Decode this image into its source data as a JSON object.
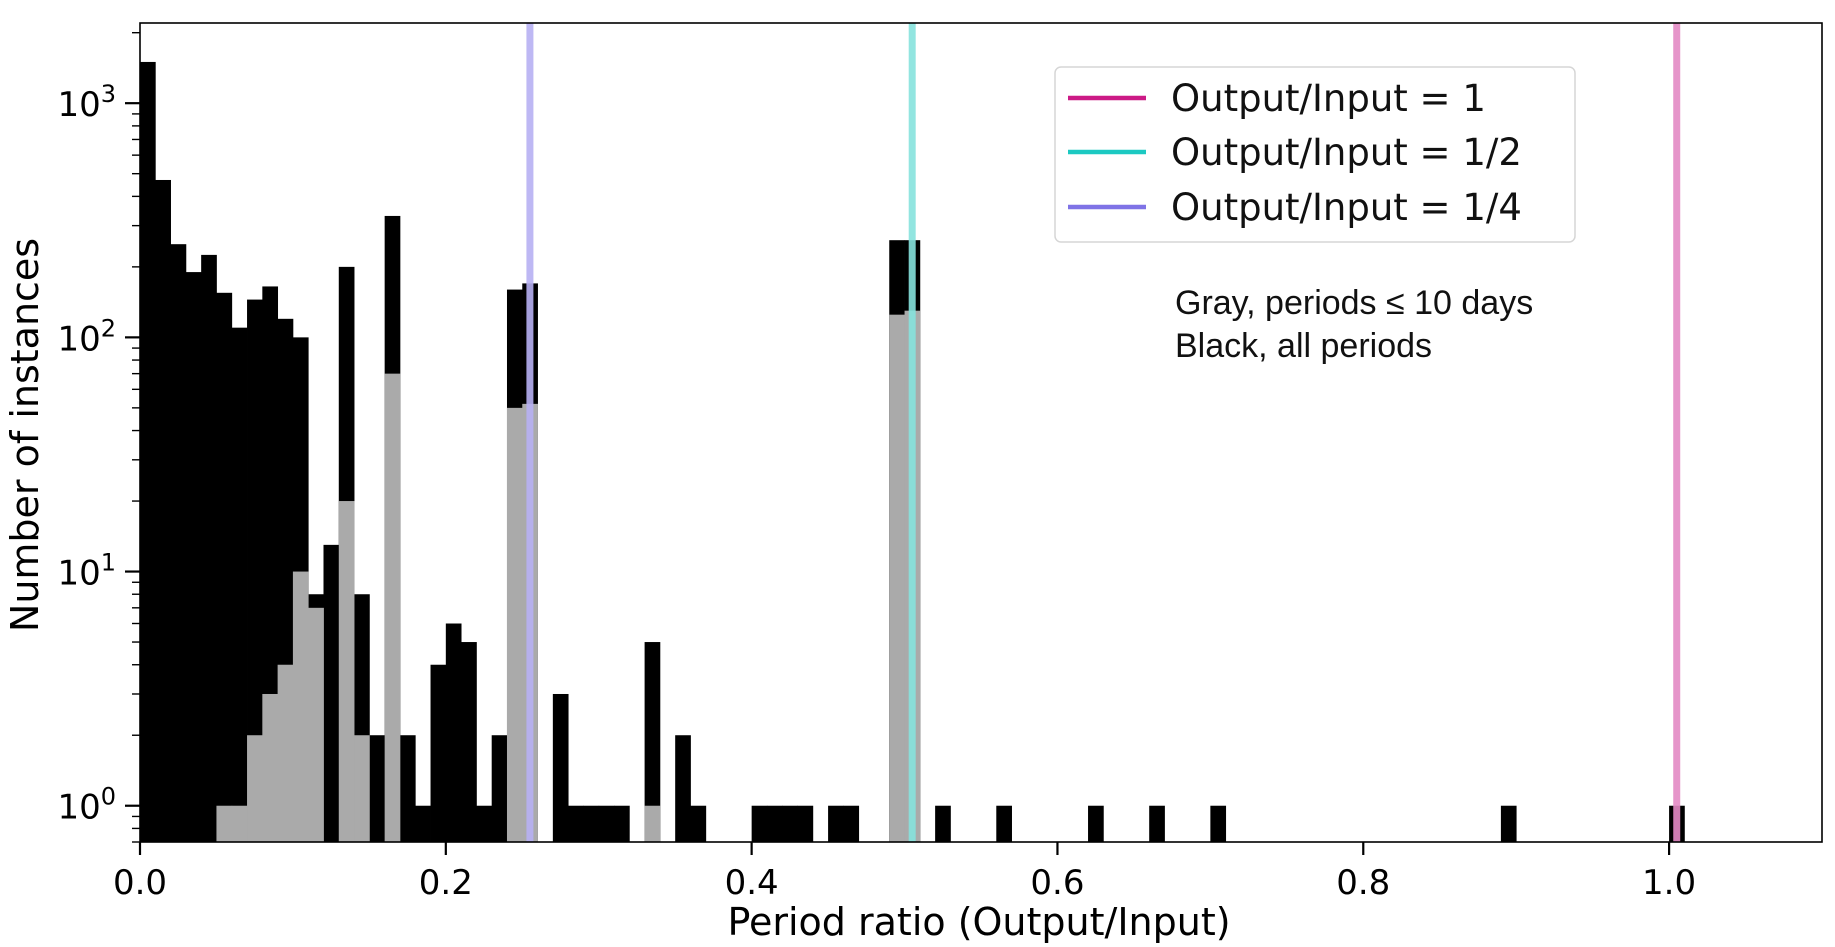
{
  "chart_data": {
    "type": "bar",
    "title": "",
    "xlabel": "Period ratio (Output/Input)",
    "ylabel": "Number of instances",
    "xlim": [
      0.0,
      1.1
    ],
    "ylim": [
      0.7,
      2200
    ],
    "yscale": "log",
    "bin_width": 0.01,
    "grid": false,
    "x_ticks": [
      {
        "value": 0.0,
        "label": "0.0"
      },
      {
        "value": 0.2,
        "label": "0.2"
      },
      {
        "value": 0.4,
        "label": "0.4"
      },
      {
        "value": 0.6,
        "label": "0.6"
      },
      {
        "value": 0.8,
        "label": "0.8"
      },
      {
        "value": 1.0,
        "label": "1.0"
      }
    ],
    "y_ticks": [
      {
        "value": 1,
        "base": "10",
        "exp": "0"
      },
      {
        "value": 10,
        "base": "10",
        "exp": "1"
      },
      {
        "value": 100,
        "base": "10",
        "exp": "2"
      },
      {
        "value": 1000,
        "base": "10",
        "exp": "3"
      }
    ],
    "series": [
      {
        "name": "Black, all periods",
        "color": "#000000",
        "bins": [
          [
            0.0,
            1500
          ],
          [
            0.01,
            470
          ],
          [
            0.02,
            250
          ],
          [
            0.03,
            190
          ],
          [
            0.04,
            225
          ],
          [
            0.05,
            155
          ],
          [
            0.06,
            110
          ],
          [
            0.07,
            145
          ],
          [
            0.08,
            165
          ],
          [
            0.09,
            120
          ],
          [
            0.1,
            100
          ],
          [
            0.11,
            8
          ],
          [
            0.12,
            13
          ],
          [
            0.13,
            200
          ],
          [
            0.14,
            8
          ],
          [
            0.15,
            2
          ],
          [
            0.16,
            330
          ],
          [
            0.17,
            2
          ],
          [
            0.18,
            1
          ],
          [
            0.19,
            4
          ],
          [
            0.2,
            6
          ],
          [
            0.21,
            5
          ],
          [
            0.22,
            1
          ],
          [
            0.23,
            2
          ],
          [
            0.24,
            160
          ],
          [
            0.25,
            170
          ],
          [
            0.27,
            3
          ],
          [
            0.28,
            1
          ],
          [
            0.29,
            1
          ],
          [
            0.3,
            1
          ],
          [
            0.31,
            1
          ],
          [
            0.33,
            5
          ],
          [
            0.35,
            2
          ],
          [
            0.36,
            1
          ],
          [
            0.4,
            1
          ],
          [
            0.41,
            1
          ],
          [
            0.42,
            1
          ],
          [
            0.43,
            1
          ],
          [
            0.45,
            1
          ],
          [
            0.46,
            1
          ],
          [
            0.49,
            260
          ],
          [
            0.5,
            260
          ],
          [
            0.52,
            1
          ],
          [
            0.56,
            1
          ],
          [
            0.62,
            1
          ],
          [
            0.66,
            1
          ],
          [
            0.7,
            1
          ],
          [
            0.89,
            1
          ],
          [
            1.0,
            1
          ]
        ]
      },
      {
        "name": "Gray, periods ≤ 10 days",
        "color": "#aaaaaa",
        "bins": [
          [
            0.05,
            1
          ],
          [
            0.06,
            1
          ],
          [
            0.07,
            2
          ],
          [
            0.08,
            3
          ],
          [
            0.09,
            4
          ],
          [
            0.1,
            10
          ],
          [
            0.11,
            7
          ],
          [
            0.13,
            20
          ],
          [
            0.14,
            2
          ],
          [
            0.16,
            70
          ],
          [
            0.24,
            50
          ],
          [
            0.25,
            52
          ],
          [
            0.33,
            1
          ],
          [
            0.49,
            125
          ],
          [
            0.5,
            130
          ]
        ]
      }
    ],
    "vlines": [
      {
        "x": 1.005,
        "label": "Output/Input = 1",
        "color": "#cc1a86",
        "plot_color": "#e389c4"
      },
      {
        "x": 0.505,
        "label": "Output/Input = 1/2",
        "color": "#1cc9c2",
        "plot_color": "#86e2dd"
      },
      {
        "x": 0.255,
        "label": "Output/Input = 1/4",
        "color": "#7f73e6",
        "plot_color": "#b7b0f3"
      }
    ],
    "legend_position": "top-right",
    "annotations": [
      "Gray, periods ≤ 10 days",
      "Black, all periods"
    ]
  }
}
